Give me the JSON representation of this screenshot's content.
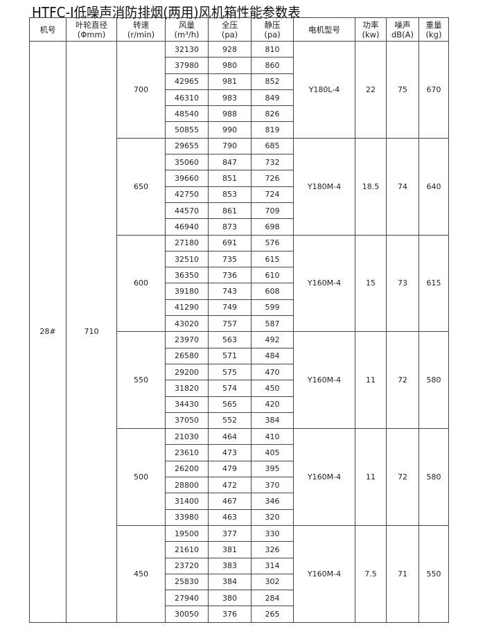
{
  "title": "HTFC-Ⅰ低噪声消防排烟(两用)风机箱性能参数表",
  "headers": [
    {
      "l1": "机号",
      "l2": ""
    },
    {
      "l1": "叶轮直径",
      "l2": "(Φmm)"
    },
    {
      "l1": "转速",
      "l2": "(r/min)"
    },
    {
      "l1": "风量",
      "l2": "(m³/h)"
    },
    {
      "l1": "全压",
      "l2": "(pa)"
    },
    {
      "l1": "静压",
      "l2": "(pa)"
    },
    {
      "l1": "电机型号",
      "l2": ""
    },
    {
      "l1": "功率",
      "l2": "(kw)"
    },
    {
      "l1": "噪声",
      "l2": "dB(A)"
    },
    {
      "l1": "重量",
      "l2": "(kg)"
    }
  ],
  "machine_no": "28#",
  "impeller_diameter": "710",
  "groups": [
    {
      "rpm": "700",
      "motor": "Y180L-4",
      "power": "22",
      "noise": "75",
      "weight": "670",
      "rows": [
        [
          "32130",
          "928",
          "810"
        ],
        [
          "37980",
          "980",
          "860"
        ],
        [
          "42965",
          "981",
          "852"
        ],
        [
          "46310",
          "983",
          "849"
        ],
        [
          "48540",
          "988",
          "826"
        ],
        [
          "50855",
          "990",
          "819"
        ]
      ]
    },
    {
      "rpm": "650",
      "motor": "Y180M-4",
      "power": "18.5",
      "noise": "74",
      "weight": "640",
      "rows": [
        [
          "29655",
          "790",
          "685"
        ],
        [
          "35060",
          "847",
          "732"
        ],
        [
          "39660",
          "851",
          "726"
        ],
        [
          "42750",
          "853",
          "724"
        ],
        [
          "44570",
          "861",
          "709"
        ],
        [
          "46940",
          "873",
          "698"
        ]
      ]
    },
    {
      "rpm": "600",
      "motor": "Y160M-4",
      "power": "15",
      "noise": "73",
      "weight": "615",
      "rows": [
        [
          "27180",
          "691",
          "576"
        ],
        [
          "32510",
          "735",
          "615"
        ],
        [
          "36350",
          "736",
          "610"
        ],
        [
          "39180",
          "743",
          "608"
        ],
        [
          "41290",
          "749",
          "599"
        ],
        [
          "43020",
          "757",
          "587"
        ]
      ]
    },
    {
      "rpm": "550",
      "motor": "Y160M-4",
      "power": "11",
      "noise": "72",
      "weight": "580",
      "rows": [
        [
          "23970",
          "563",
          "492"
        ],
        [
          "26580",
          "571",
          "484"
        ],
        [
          "29200",
          "575",
          "470"
        ],
        [
          "31820",
          "574",
          "450"
        ],
        [
          "34430",
          "565",
          "420"
        ],
        [
          "37050",
          "552",
          "384"
        ]
      ]
    },
    {
      "rpm": "500",
      "motor": "Y160M-4",
      "power": "11",
      "noise": "72",
      "weight": "580",
      "rows": [
        [
          "21030",
          "464",
          "410"
        ],
        [
          "23610",
          "473",
          "405"
        ],
        [
          "26200",
          "479",
          "395"
        ],
        [
          "28800",
          "472",
          "370"
        ],
        [
          "31400",
          "467",
          "346"
        ],
        [
          "33980",
          "463",
          "320"
        ]
      ]
    },
    {
      "rpm": "450",
      "motor": "Y160M-4",
      "power": "7.5",
      "noise": "71",
      "weight": "550",
      "rows": [
        [
          "19500",
          "377",
          "330"
        ],
        [
          "21610",
          "381",
          "326"
        ],
        [
          "23720",
          "383",
          "314"
        ],
        [
          "25830",
          "384",
          "302"
        ],
        [
          "27940",
          "380",
          "284"
        ],
        [
          "30050",
          "376",
          "265"
        ]
      ]
    }
  ]
}
